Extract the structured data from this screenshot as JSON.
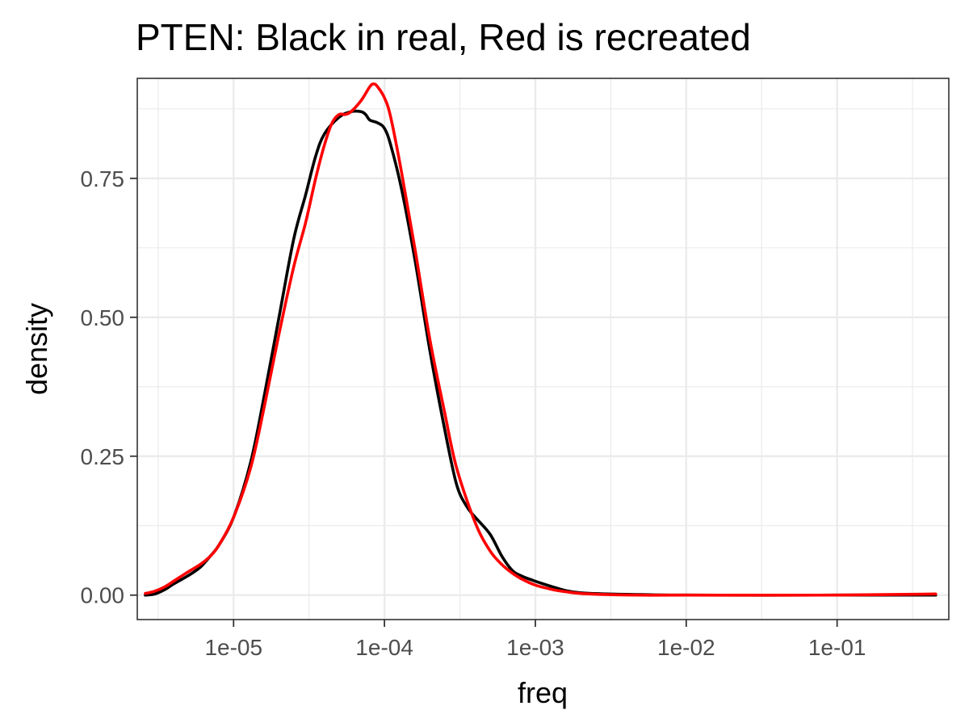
{
  "chart_data": {
    "type": "line",
    "title": "PTEN: Black in real, Red is recreated",
    "xlabel": "freq",
    "ylabel": "density",
    "x_scale": "log10",
    "xlim": [
      2.3e-06,
      0.55
    ],
    "ylim": [
      -0.044,
      0.93
    ],
    "x_ticks": [
      1e-05,
      0.0001,
      0.001,
      0.01,
      0.1
    ],
    "x_tick_labels": [
      "1e-05",
      "1e-04",
      "1e-03",
      "1e-02",
      "1e-01"
    ],
    "y_ticks": [
      0,
      0.25,
      0.5,
      0.75
    ],
    "y_tick_labels": [
      "0.00",
      "0.25",
      "0.50",
      "0.75"
    ],
    "grid": true,
    "legend": "none",
    "series": [
      {
        "color": "#000000",
        "x": [
          2.6e-06,
          3e-06,
          3.5e-06,
          4e-06,
          5e-06,
          6e-06,
          7e-06,
          8e-06,
          1e-05,
          1.3e-05,
          1.6e-05,
          2e-05,
          2.5e-05,
          3e-05,
          3.5e-05,
          4e-05,
          5e-05,
          6e-05,
          7e-05,
          7.5e-05,
          8e-05,
          9e-05,
          0.0001,
          0.00011,
          0.00013,
          0.00016,
          0.0002,
          0.00025,
          0.0003,
          0.00035,
          0.0004,
          0.0005,
          0.0006,
          0.0007,
          0.0008,
          0.001,
          0.0013,
          0.0016,
          0.002,
          0.003,
          0.005,
          0.01,
          0.1,
          0.45
        ],
        "y": [
          0.0,
          0.002,
          0.01,
          0.02,
          0.035,
          0.05,
          0.07,
          0.09,
          0.14,
          0.24,
          0.36,
          0.5,
          0.64,
          0.72,
          0.79,
          0.83,
          0.86,
          0.87,
          0.87,
          0.865,
          0.855,
          0.85,
          0.84,
          0.81,
          0.73,
          0.6,
          0.44,
          0.3,
          0.2,
          0.16,
          0.14,
          0.11,
          0.07,
          0.045,
          0.035,
          0.025,
          0.015,
          0.008,
          0.004,
          0.002,
          0.001,
          0.0,
          0.0,
          0.0
        ]
      },
      {
        "color": "#ff0000",
        "x": [
          2.6e-06,
          3e-06,
          3.5e-06,
          4e-06,
          5e-06,
          6e-06,
          7e-06,
          8e-06,
          1e-05,
          1.3e-05,
          1.6e-05,
          2e-05,
          2.5e-05,
          3e-05,
          3.5e-05,
          4e-05,
          4.5e-05,
          5e-05,
          5.5e-05,
          6e-05,
          7e-05,
          8e-05,
          8.5e-05,
          9e-05,
          0.0001,
          0.00011,
          0.00013,
          0.00016,
          0.0002,
          0.00025,
          0.0003,
          0.0004,
          0.0005,
          0.0006,
          0.0007,
          0.0008,
          0.001,
          0.0013,
          0.0016,
          0.002,
          0.003,
          0.005,
          0.01,
          0.1,
          0.45
        ],
        "y": [
          0.003,
          0.007,
          0.015,
          0.025,
          0.042,
          0.055,
          0.07,
          0.09,
          0.14,
          0.23,
          0.34,
          0.47,
          0.59,
          0.67,
          0.75,
          0.81,
          0.85,
          0.865,
          0.865,
          0.87,
          0.89,
          0.915,
          0.92,
          0.915,
          0.895,
          0.86,
          0.76,
          0.62,
          0.46,
          0.33,
          0.23,
          0.13,
          0.08,
          0.055,
          0.04,
          0.03,
          0.018,
          0.01,
          0.006,
          0.003,
          0.001,
          0.0,
          0.0,
          0.0,
          0.002
        ]
      }
    ]
  }
}
